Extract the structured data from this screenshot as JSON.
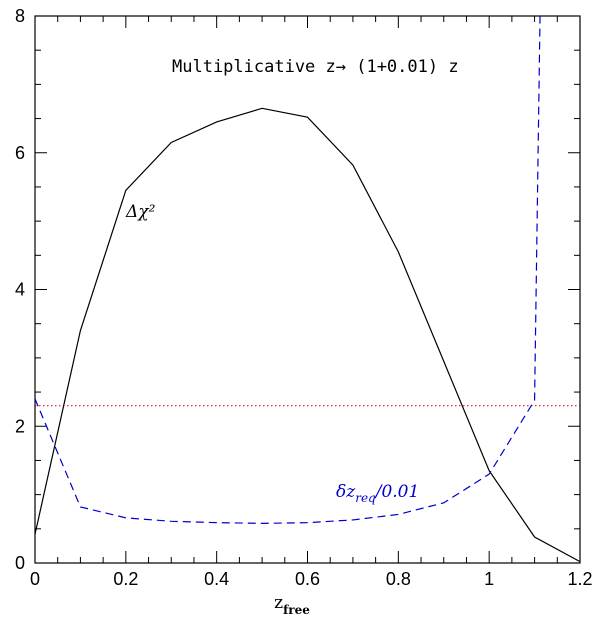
{
  "chart_data": {
    "type": "line",
    "title": "Multiplicative z→ (1+0.01) z",
    "xlabel_main": "z",
    "xlabel_sub": "free",
    "xlim": [
      0,
      1.2
    ],
    "ylim": [
      0,
      8
    ],
    "x_ticks": [
      0,
      0.2,
      0.4,
      0.6,
      0.8,
      1,
      1.2
    ],
    "x_tick_labels": [
      "0",
      "0.2",
      "0.4",
      "0.6",
      "0.8",
      "1",
      "1.2"
    ],
    "y_ticks": [
      0,
      2,
      4,
      6,
      8
    ],
    "y_tick_labels": [
      "0",
      "2",
      "4",
      "6",
      "8"
    ],
    "series": [
      {
        "label": "Δχ²",
        "style": "solid",
        "color": "#000000",
        "x": [
          0,
          0.1,
          0.2,
          0.3,
          0.4,
          0.5,
          0.6,
          0.7,
          0.8,
          0.9,
          1.0,
          1.1,
          1.2
        ],
        "y": [
          0.42,
          3.4,
          5.45,
          6.15,
          6.45,
          6.65,
          6.52,
          5.82,
          4.55,
          2.95,
          1.35,
          0.38,
          0.02
        ]
      },
      {
        "label_main": "δz",
        "label_sub": "req",
        "label_tail": "/0.01",
        "style": "dashed",
        "color": "#0000cc",
        "x": [
          0,
          0.1,
          0.2,
          0.3,
          0.4,
          0.5,
          0.6,
          0.7,
          0.8,
          0.9,
          1.0,
          1.1,
          1.1,
          1.112
        ],
        "y": [
          2.4,
          0.82,
          0.66,
          0.61,
          0.59,
          0.58,
          0.59,
          0.63,
          0.71,
          0.88,
          1.3,
          2.38,
          2.38,
          8.0
        ]
      }
    ],
    "reference_line": {
      "y": 2.3,
      "style": "dotted",
      "color": "#cc0000"
    }
  }
}
